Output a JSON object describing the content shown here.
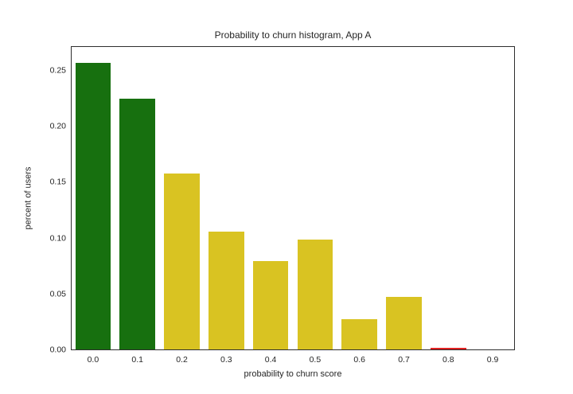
{
  "figure": {
    "background": "#ffffff",
    "spine_color": "#2e2e2e",
    "text_color": "#262626"
  },
  "chart_data": {
    "type": "bar",
    "title": "Probability to churn histogram, App A",
    "xlabel": "probability to churn score",
    "ylabel": "percent of users",
    "categories": [
      "0.0",
      "0.1",
      "0.2",
      "0.3",
      "0.4",
      "0.5",
      "0.6",
      "0.7",
      "0.8",
      "0.9"
    ],
    "values": [
      0.257,
      0.225,
      0.158,
      0.106,
      0.08,
      0.099,
      0.028,
      0.048,
      0.002,
      0.0005
    ],
    "bar_colors": [
      "#17700f",
      "#17700f",
      "#d9c322",
      "#d9c322",
      "#d9c322",
      "#d9c322",
      "#d9c322",
      "#d9c322",
      "#e22222",
      "#e22222"
    ],
    "color_legend_semantics": {
      "green": "#17700f",
      "yellow": "#d9c322",
      "red": "#e22222"
    },
    "yticks": [
      "0.00",
      "0.05",
      "0.10",
      "0.15",
      "0.20",
      "0.25"
    ],
    "ytick_values": [
      0.0,
      0.05,
      0.1,
      0.15,
      0.2,
      0.25
    ],
    "ylim": [
      0,
      0.272
    ],
    "bar_width_fraction": 0.8,
    "grid": false,
    "legend_position": "none"
  }
}
